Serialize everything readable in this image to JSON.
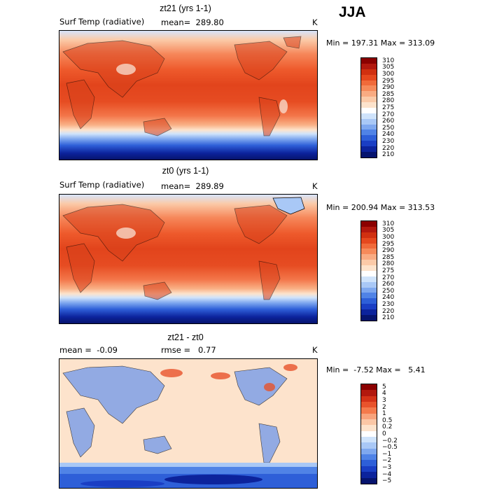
{
  "season": "JJA",
  "panels": [
    {
      "title": "zt21 (yrs 1-1)",
      "variable": "Surf Temp (radiative)",
      "stat_text": "mean=  289.80",
      "units": "K",
      "minmax": "Min = 197.31 Max = 313.09",
      "colorbar": {
        "colors": [
          "#8b0000",
          "#b2180e",
          "#d03010",
          "#e5481e",
          "#f06a3a",
          "#f68a5a",
          "#f9ab82",
          "#fbcaa8",
          "#fde3cc",
          "#ffffff",
          "#cfe3fb",
          "#a9c8f6",
          "#7fa8ef",
          "#5083e6",
          "#2e5fd8",
          "#1a3ec4",
          "#0c239c",
          "#06146e"
        ],
        "labels": [
          "310",
          "305",
          "300",
          "295",
          "290",
          "285",
          "280",
          "275",
          "270",
          "260",
          "250",
          "240",
          "230",
          "220",
          "210"
        ]
      }
    },
    {
      "title": "zt0 (yrs 1-1)",
      "variable": "Surf Temp (radiative)",
      "stat_text": "mean=  289.89",
      "units": "K",
      "minmax": "Min = 200.94 Max = 313.53",
      "colorbar": {
        "colors": [
          "#8b0000",
          "#b2180e",
          "#d03010",
          "#e5481e",
          "#f06a3a",
          "#f68a5a",
          "#f9ab82",
          "#fbcaa8",
          "#fde3cc",
          "#ffffff",
          "#cfe3fb",
          "#a9c8f6",
          "#7fa8ef",
          "#5083e6",
          "#2e5fd8",
          "#1a3ec4",
          "#0c239c",
          "#06146e"
        ],
        "labels": [
          "310",
          "305",
          "300",
          "295",
          "290",
          "285",
          "280",
          "275",
          "270",
          "260",
          "250",
          "240",
          "230",
          "220",
          "210"
        ]
      }
    },
    {
      "title": "zt21 - zt0",
      "variable": "mean =  -0.09",
      "stat_text": "rmse =   0.77",
      "units": "K",
      "minmax": "Min =  -7.52 Max =   5.41",
      "colorbar": {
        "colors": [
          "#8b0000",
          "#b2180e",
          "#d43218",
          "#e8532c",
          "#f47a4c",
          "#f8a37c",
          "#fbc7a6",
          "#fde3cc",
          "#ffffff",
          "#cfe3fb",
          "#a9c8f6",
          "#7fa8ef",
          "#4f82e6",
          "#2e5fd8",
          "#1a3ec4",
          "#0c239c",
          "#06146e"
        ],
        "labels": [
          "5",
          "4",
          "3",
          "2",
          "1",
          "0.5",
          "0.2",
          "0",
          "−0.2",
          "−0.5",
          "−1",
          "−2",
          "−3",
          "−4",
          "−5"
        ]
      }
    }
  ]
}
